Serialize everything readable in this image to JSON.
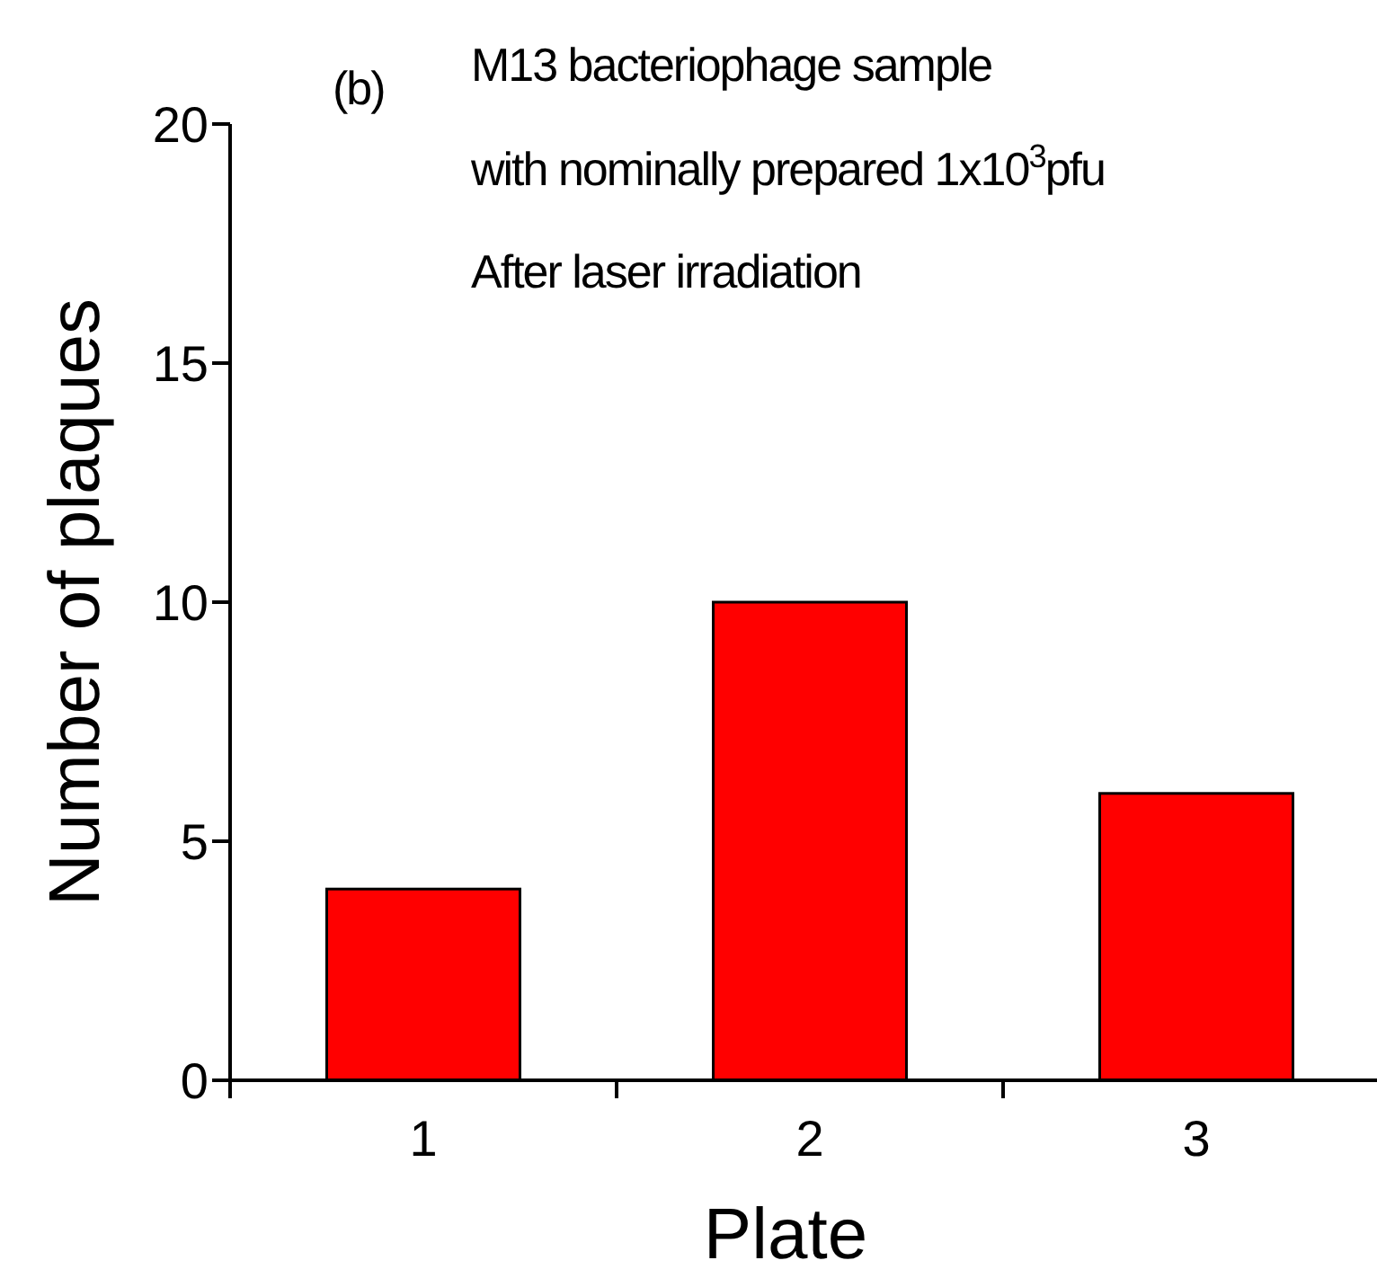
{
  "chart_data": {
    "type": "bar",
    "xlabel": "Plate",
    "ylabel": "Number of plaques",
    "categories": [
      "1",
      "2",
      "3"
    ],
    "values": [
      4,
      10,
      6
    ],
    "color": "#ff0000",
    "ylim": [
      0,
      20
    ],
    "yticks": [
      0,
      5,
      10,
      15,
      20
    ],
    "grid": false,
    "annotations": [
      "(b)",
      "M13 bacteriophage sample",
      "with nominally prepared 1x10$^{3}$pfu",
      "After laser irradiation"
    ]
  }
}
